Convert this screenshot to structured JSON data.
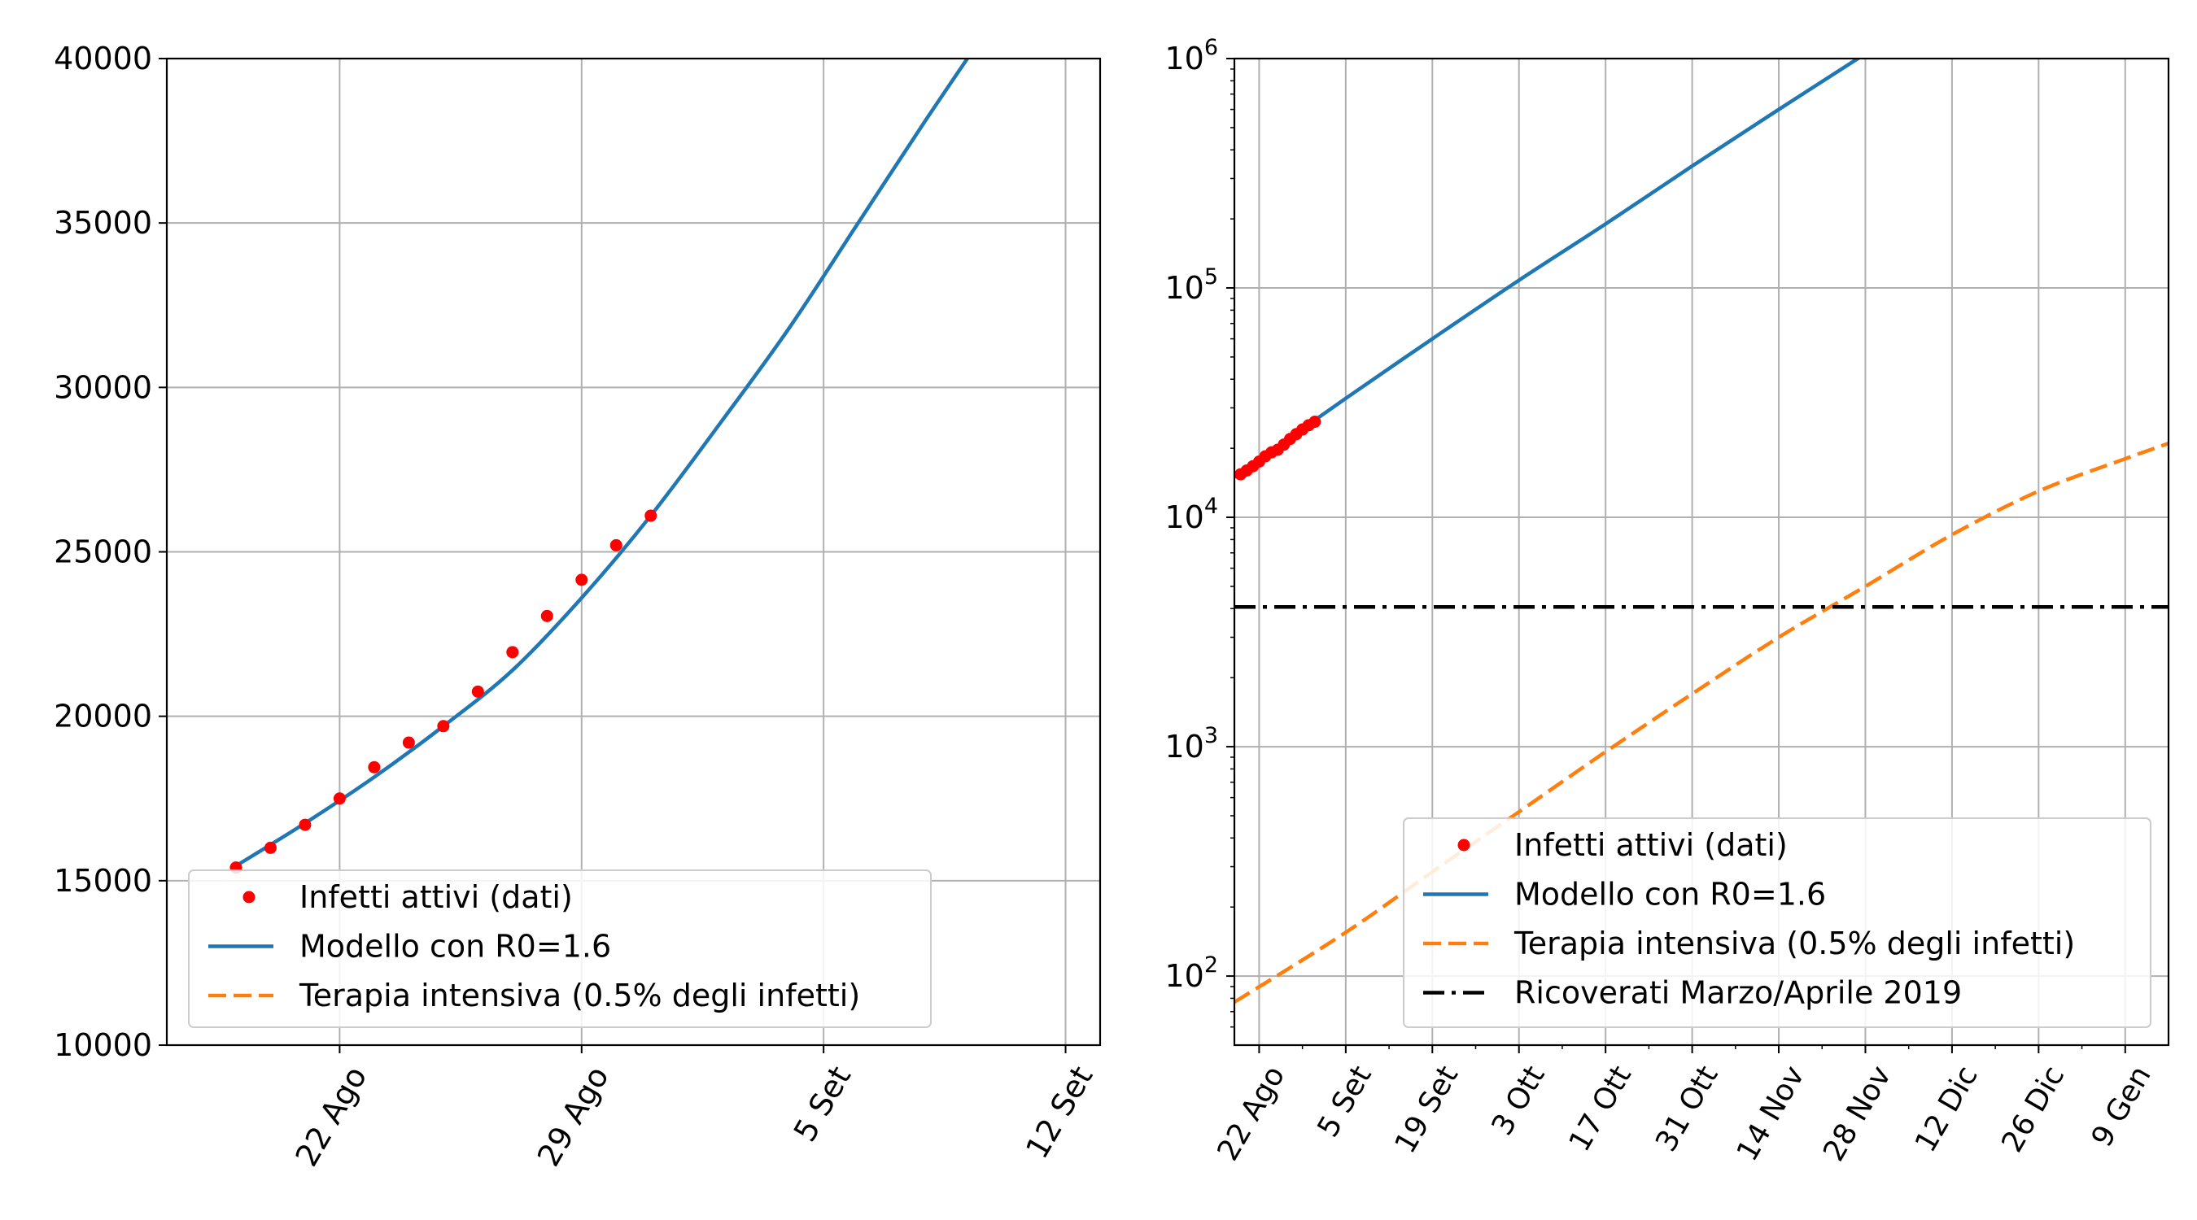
{
  "chart_data": [
    {
      "type": "line",
      "title": "",
      "xlabel": "",
      "ylabel": "",
      "y_scale": "linear",
      "xlim": [
        "2020-08-17",
        "2020-09-13"
      ],
      "ylim": [
        10000,
        40000
      ],
      "grid": true,
      "legend_placement": "lower left",
      "x_ticks": [
        {
          "date": "2020-08-22",
          "label": "22 Ago"
        },
        {
          "date": "2020-08-29",
          "label": "29 Ago"
        },
        {
          "date": "2020-09-05",
          "label": "5 Set"
        },
        {
          "date": "2020-09-12",
          "label": "12 Set"
        }
      ],
      "y_ticks": [
        {
          "value": 10000,
          "label": "10000"
        },
        {
          "value": 15000,
          "label": "15000"
        },
        {
          "value": 20000,
          "label": "20000"
        },
        {
          "value": 25000,
          "label": "25000"
        },
        {
          "value": 30000,
          "label": "30000"
        },
        {
          "value": 35000,
          "label": "35000"
        },
        {
          "value": 40000,
          "label": "40000"
        }
      ],
      "series": [
        {
          "name": "Infetti attivi (dati)",
          "style": "points",
          "color": "#ff0000",
          "x": [
            "2020-08-19",
            "2020-08-20",
            "2020-08-21",
            "2020-08-22",
            "2020-08-23",
            "2020-08-24",
            "2020-08-25",
            "2020-08-26",
            "2020-08-27",
            "2020-08-28",
            "2020-08-29",
            "2020-08-30",
            "2020-08-31"
          ],
          "y": [
            15400,
            16000,
            16700,
            17500,
            18450,
            19200,
            19700,
            20750,
            21950,
            23050,
            24150,
            25200,
            26100
          ]
        },
        {
          "name": "Modello con R0=1.6",
          "style": "line",
          "color": "#1f77b4",
          "x": [
            "2020-08-19",
            "2020-08-21",
            "2020-08-23",
            "2020-08-25",
            "2020-08-27",
            "2020-08-29",
            "2020-08-31",
            "2020-09-02",
            "2020-09-04",
            "2020-09-06",
            "2020-09-08",
            "2020-09-10",
            "2020-09-11"
          ],
          "y": [
            15450,
            16750,
            18150,
            19700,
            21400,
            23600,
            26100,
            28900,
            31800,
            35000,
            38200,
            41300,
            42900
          ]
        },
        {
          "name": "Terapia intensiva (0.5% degli infetti)",
          "style": "dashed",
          "color": "#ff7f0e",
          "x": [],
          "y": []
        }
      ]
    },
    {
      "type": "line",
      "title": "",
      "xlabel": "",
      "ylabel": "",
      "y_scale": "log",
      "xlim": [
        "2020-08-18",
        "2021-01-16"
      ],
      "ylim": [
        50,
        1000000
      ],
      "grid": true,
      "legend_placement": "lower right",
      "x_ticks": [
        {
          "date": "2020-08-22",
          "label": "22 Ago"
        },
        {
          "date": "2020-09-05",
          "label": "5 Set"
        },
        {
          "date": "2020-09-19",
          "label": "19 Set"
        },
        {
          "date": "2020-10-03",
          "label": "3 Ott"
        },
        {
          "date": "2020-10-17",
          "label": "17 Ott"
        },
        {
          "date": "2020-10-31",
          "label": "31 Ott"
        },
        {
          "date": "2020-11-14",
          "label": "14 Nov"
        },
        {
          "date": "2020-11-28",
          "label": "28 Nov"
        },
        {
          "date": "2020-12-12",
          "label": "12 Dic"
        },
        {
          "date": "2020-12-26",
          "label": "26 Dic"
        },
        {
          "date": "2021-01-09",
          "label": "9 Gen"
        }
      ],
      "y_ticks": [
        {
          "value": 100,
          "base": "10",
          "exp": "2"
        },
        {
          "value": 1000,
          "base": "10",
          "exp": "3"
        },
        {
          "value": 10000,
          "base": "10",
          "exp": "4"
        },
        {
          "value": 100000,
          "base": "10",
          "exp": "5"
        },
        {
          "value": 1000000,
          "base": "10",
          "exp": "6"
        }
      ],
      "series": [
        {
          "name": "Infetti attivi (dati)",
          "style": "points",
          "color": "#ff0000",
          "x": [
            "2020-08-19",
            "2020-08-20",
            "2020-08-21",
            "2020-08-22",
            "2020-08-23",
            "2020-08-24",
            "2020-08-25",
            "2020-08-26",
            "2020-08-27",
            "2020-08-28",
            "2020-08-29",
            "2020-08-30",
            "2020-08-31"
          ],
          "y": [
            15400,
            16000,
            16700,
            17500,
            18450,
            19200,
            19700,
            20750,
            21950,
            23050,
            24150,
            25200,
            26100
          ]
        },
        {
          "name": "Modello con R0=1.6",
          "style": "line",
          "color": "#1f77b4",
          "x": [
            "2020-08-18",
            "2020-09-05",
            "2020-09-19",
            "2020-10-03",
            "2020-10-17",
            "2020-10-31",
            "2020-11-14",
            "2020-11-28"
          ],
          "y": [
            15000,
            33000,
            60000,
            108000,
            190000,
            340000,
            600000,
            1050000
          ]
        },
        {
          "name": "Terapia intensiva (0.5% degli infetti)",
          "style": "dashed",
          "color": "#ff7f0e",
          "x": [
            "2020-08-18",
            "2020-09-05",
            "2020-09-19",
            "2020-10-03",
            "2020-10-17",
            "2020-10-31",
            "2020-11-14",
            "2020-11-28",
            "2020-12-12",
            "2020-12-26",
            "2021-01-09",
            "2021-01-16"
          ],
          "y": [
            77,
            155,
            285,
            520,
            950,
            1700,
            3000,
            5000,
            8400,
            13000,
            18000,
            21000
          ]
        },
        {
          "name": "Ricoverati Marzo/Aprile 2019",
          "style": "dashdot",
          "color": "#000000",
          "x": [
            "2020-08-18",
            "2021-01-16"
          ],
          "y": [
            4068,
            4068
          ]
        }
      ]
    }
  ]
}
